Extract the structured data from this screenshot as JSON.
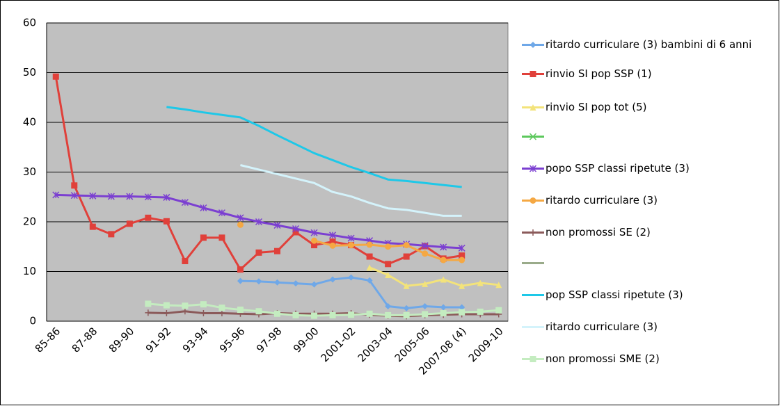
{
  "chart_data": {
    "type": "line",
    "categories": [
      "85-86",
      null,
      "87-88",
      null,
      "89-90",
      null,
      "91-92",
      null,
      "93-94",
      null,
      "95-96",
      null,
      "97-98",
      null,
      "99-00",
      null,
      "2001-02",
      null,
      "2003-04",
      null,
      "2005-06",
      null,
      "2007-08 (4)",
      null,
      "2009-10"
    ],
    "ylim": [
      0,
      60
    ],
    "yticks": [
      0,
      10,
      20,
      30,
      40,
      50,
      60
    ],
    "grid": true,
    "series": [
      {
        "name": "ritardo curriculare (3) bambini di 6 anni",
        "color": "#6fa8e8",
        "marker": "diamond",
        "values": [
          null,
          null,
          null,
          null,
          null,
          null,
          null,
          null,
          null,
          null,
          8.1,
          8.0,
          7.8,
          7.6,
          7.4,
          8.4,
          8.8,
          8.2,
          3.0,
          2.6,
          3.0,
          2.8,
          2.8,
          null,
          null
        ]
      },
      {
        "name": "rinvio SI pop SSP (1)",
        "color": "#e0403a",
        "marker": "square",
        "values": [
          49.2,
          27.3,
          19.0,
          17.5,
          19.6,
          20.8,
          20.1,
          12.1,
          16.8,
          16.8,
          10.4,
          13.8,
          14.1,
          17.9,
          15.3,
          16.0,
          15.3,
          13.0,
          11.5,
          13.0,
          15.1,
          12.6,
          13.2,
          null,
          null
        ]
      },
      {
        "name": "rinvio SI pop tot (5)",
        "color": "#f3e37a",
        "marker": "triangle",
        "values": [
          null,
          null,
          null,
          null,
          null,
          null,
          null,
          null,
          null,
          null,
          null,
          null,
          null,
          null,
          null,
          null,
          null,
          10.8,
          9.3,
          7.1,
          7.5,
          8.4,
          7.1,
          7.7,
          7.3
        ]
      },
      {
        "name": null,
        "color": "#5cc85c",
        "marker": "x",
        "values": [
          null,
          null,
          null,
          null,
          null,
          null,
          null,
          null,
          null,
          null,
          null,
          null,
          null,
          null,
          null,
          null,
          null,
          null,
          null,
          null,
          null,
          null,
          null,
          null,
          null
        ]
      },
      {
        "name": "popo SSP classi ripetute (3)",
        "color": "#7b3fd1",
        "marker": "star",
        "values": [
          25.4,
          25.3,
          25.2,
          25.1,
          25.1,
          25.0,
          24.9,
          23.9,
          22.8,
          21.8,
          20.8,
          20.0,
          19.3,
          18.6,
          17.8,
          17.3,
          16.7,
          16.2,
          15.7,
          15.5,
          15.2,
          14.9,
          14.7,
          null,
          null
        ]
      },
      {
        "name": "ritardo curriculare (3)",
        "color": "#f5a843",
        "marker": "circle",
        "values": [
          null,
          null,
          null,
          null,
          null,
          null,
          null,
          null,
          null,
          null,
          19.4,
          null,
          null,
          null,
          16.2,
          15.2,
          15.3,
          15.4,
          15.0,
          15.3,
          13.6,
          12.3,
          12.3,
          null,
          null
        ]
      },
      {
        "name": "non promossi SE (2)",
        "color": "#8b5a5a",
        "marker": "plus",
        "values": [
          null,
          null,
          null,
          null,
          null,
          1.7,
          1.6,
          2.0,
          1.6,
          1.6,
          1.5,
          1.4,
          1.6,
          1.5,
          1.5,
          1.5,
          1.6,
          1.3,
          1.1,
          1.0,
          1.2,
          1.3,
          1.4,
          1.4,
          1.4
        ]
      },
      {
        "name": null,
        "color": "#9aab8a",
        "marker": "none",
        "values": [
          null,
          null,
          null,
          null,
          null,
          null,
          null,
          null,
          null,
          null,
          null,
          null,
          null,
          null,
          null,
          null,
          null,
          null,
          null,
          null,
          null,
          null,
          null,
          null,
          null
        ]
      },
      {
        "name": "pop SSP classi ripetute (3)",
        "color": "#1ec8e8",
        "marker": "none",
        "values": [
          null,
          null,
          null,
          null,
          null,
          null,
          43.1,
          42.6,
          42.0,
          41.5,
          41.0,
          39.3,
          37.4,
          35.6,
          33.8,
          32.4,
          31.0,
          29.8,
          28.5,
          28.2,
          27.8,
          27.4,
          27.0,
          null,
          null
        ]
      },
      {
        "name": "ritardo curriculare (3)",
        "color": "#d4f3fb",
        "marker": "none",
        "values": [
          null,
          null,
          null,
          null,
          null,
          null,
          null,
          null,
          null,
          null,
          31.4,
          30.5,
          29.6,
          28.7,
          27.8,
          26.0,
          25.1,
          23.8,
          22.7,
          22.4,
          21.8,
          21.2,
          21.2,
          null,
          null
        ]
      },
      {
        "name": "non promossi SME (2)",
        "color": "#c4ecc0",
        "marker": "square",
        "values": [
          null,
          null,
          null,
          null,
          null,
          3.5,
          3.2,
          3.1,
          3.4,
          2.7,
          2.3,
          2.0,
          1.5,
          1.2,
          1.1,
          1.2,
          1.3,
          1.5,
          1.2,
          1.2,
          1.4,
          1.6,
          1.8,
          1.9,
          2.2
        ]
      }
    ]
  }
}
